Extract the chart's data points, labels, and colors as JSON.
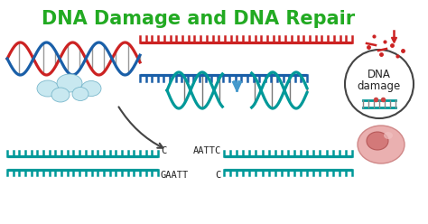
{
  "title": "DNA Damage and DNA Repair",
  "title_color": "#22aa22",
  "title_fontsize": 15,
  "bg_color": "#ffffff",
  "dna_blue": "#1a5fa8",
  "dna_red": "#cc2222",
  "dna_teal": "#009999",
  "text_dark": "#222222",
  "damage_label_1": "DNA",
  "damage_label_2": "damage",
  "seq1_top": "C",
  "seq1_bot": "GAATT",
  "seq2_top": "AATTC",
  "seq2_bot": "C",
  "cloud_color_face": "#c8e8f0",
  "cloud_color_edge": "#7ab8cc",
  "cell_color": "#e8a0a0",
  "circle_color": "#444444",
  "spark_color": "#4499cc"
}
